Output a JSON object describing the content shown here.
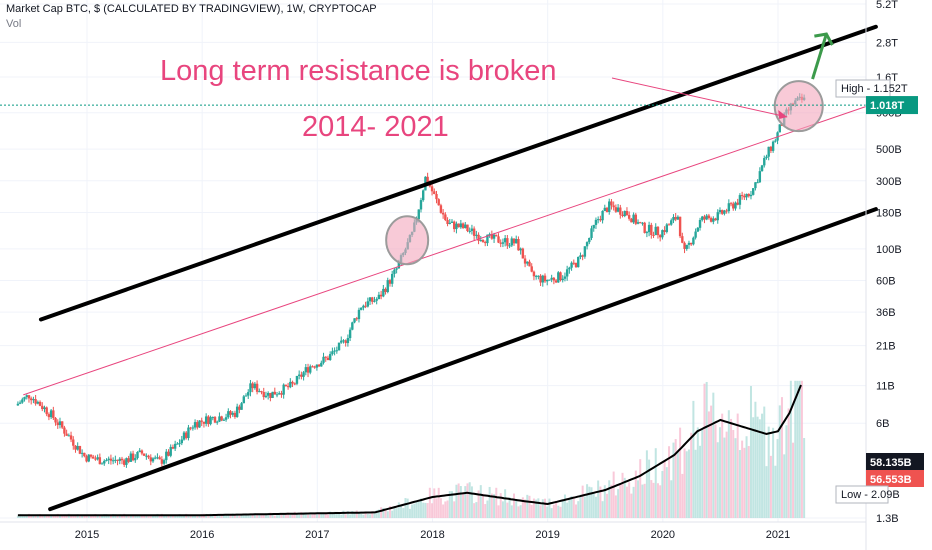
{
  "header": {
    "title": "Market Cap BTC, $ (CALCULATED BY TRADINGVIEW), 1W, CRYPTOCAP",
    "subtitle": "Vol"
  },
  "chart_data": {
    "type": "candlestick",
    "title": "Market Cap BTC, $ (CALCULATED BY TRADINGVIEW), 1W, CRYPTOCAP",
    "y_scale": "log",
    "ylim": [
      1200000000.0,
      5500000000000.0
    ],
    "xlim": [
      2014.35,
      2021.85
    ],
    "y_ticks": [
      {
        "label": "5.2T",
        "value": 5200000000000.0
      },
      {
        "label": "2.8T",
        "value": 2800000000000.0
      },
      {
        "label": "1.6T",
        "value": 1600000000000.0
      },
      {
        "label": "900B",
        "value": 900000000000.0
      },
      {
        "label": "500B",
        "value": 500000000000.0
      },
      {
        "label": "300B",
        "value": 300000000000.0
      },
      {
        "label": "180B",
        "value": 180000000000.0
      },
      {
        "label": "100B",
        "value": 100000000000.0
      },
      {
        "label": "60B",
        "value": 60000000000.0
      },
      {
        "label": "36B",
        "value": 36000000000.0
      },
      {
        "label": "21B",
        "value": 21000000000.0
      },
      {
        "label": "11B",
        "value": 11000000000.0
      },
      {
        "label": "6B",
        "value": 6000000000.0
      },
      {
        "label": "1.3B",
        "value": 1300000000.0
      }
    ],
    "x_ticks": [
      {
        "label": "2015",
        "value": 2015
      },
      {
        "label": "2016",
        "value": 2016
      },
      {
        "label": "2017",
        "value": 2017
      },
      {
        "label": "2018",
        "value": 2018
      },
      {
        "label": "2019",
        "value": 2019
      },
      {
        "label": "2020",
        "value": 2020
      },
      {
        "label": "2021",
        "value": 2021
      }
    ],
    "price_path": [
      [
        2014.4,
        8000000000.0
      ],
      [
        2014.52,
        9500000000.0
      ],
      [
        2014.7,
        7000000000.0
      ],
      [
        2014.85,
        5000000000.0
      ],
      [
        2015.0,
        3500000000.0
      ],
      [
        2015.15,
        3300000000.0
      ],
      [
        2015.35,
        3300000000.0
      ],
      [
        2015.5,
        3700000000.0
      ],
      [
        2015.65,
        3200000000.0
      ],
      [
        2015.8,
        4200000000.0
      ],
      [
        2015.95,
        6000000000.0
      ],
      [
        2016.1,
        6500000000.0
      ],
      [
        2016.3,
        7000000000.0
      ],
      [
        2016.45,
        11000000000.0
      ],
      [
        2016.6,
        9500000000.0
      ],
      [
        2016.8,
        11000000000.0
      ],
      [
        2016.95,
        15000000000.0
      ],
      [
        2017.1,
        17000000000.0
      ],
      [
        2017.25,
        22000000000.0
      ],
      [
        2017.4,
        40000000000.0
      ],
      [
        2017.55,
        45000000000.0
      ],
      [
        2017.7,
        70000000000.0
      ],
      [
        2017.85,
        130000000000.0
      ],
      [
        2017.96,
        320000000000.0
      ],
      [
        2018.05,
        220000000000.0
      ],
      [
        2018.15,
        150000000000.0
      ],
      [
        2018.3,
        140000000000.0
      ],
      [
        2018.45,
        120000000000.0
      ],
      [
        2018.6,
        115000000000.0
      ],
      [
        2018.75,
        110000000000.0
      ],
      [
        2018.88,
        65000000000.0
      ],
      [
        2019.0,
        60000000000.0
      ],
      [
        2019.15,
        65000000000.0
      ],
      [
        2019.3,
        85000000000.0
      ],
      [
        2019.45,
        160000000000.0
      ],
      [
        2019.55,
        200000000000.0
      ],
      [
        2019.7,
        180000000000.0
      ],
      [
        2019.85,
        140000000000.0
      ],
      [
        2020.0,
        130000000000.0
      ],
      [
        2020.15,
        170000000000.0
      ],
      [
        2020.2,
        90000000000.0
      ],
      [
        2020.35,
        160000000000.0
      ],
      [
        2020.5,
        170000000000.0
      ],
      [
        2020.65,
        210000000000.0
      ],
      [
        2020.8,
        260000000000.0
      ],
      [
        2020.92,
        450000000000.0
      ],
      [
        2021.0,
        600000000000.0
      ],
      [
        2021.08,
        850000000000.0
      ],
      [
        2021.15,
        1050000000000.0
      ],
      [
        2021.22,
        1100000000000.0
      ]
    ],
    "volume_scale": {
      "max": 60000000000.0
    },
    "volume_ma": [
      [
        2014.4,
        0.02
      ],
      [
        2016.0,
        0.02
      ],
      [
        2017.5,
        0.04
      ],
      [
        2018.0,
        0.15
      ],
      [
        2018.3,
        0.18
      ],
      [
        2018.8,
        0.12
      ],
      [
        2019.0,
        0.1
      ],
      [
        2019.5,
        0.2
      ],
      [
        2019.8,
        0.3
      ],
      [
        2020.1,
        0.45
      ],
      [
        2020.3,
        0.62
      ],
      [
        2020.5,
        0.7
      ],
      [
        2020.7,
        0.65
      ],
      [
        2020.9,
        0.6
      ],
      [
        2021.0,
        0.62
      ],
      [
        2021.1,
        0.75
      ],
      [
        2021.2,
        0.95
      ]
    ],
    "last_value": 1018000000000.0,
    "price_line_label": "1.018T",
    "high_label": "High - 1.152T",
    "low_label": "Low - 2.09B",
    "volume_labels": [
      "58.135B",
      "56.553B"
    ],
    "trend_channel": {
      "upper": [
        [
          2014.6,
          32000000000.0
        ],
        [
          2021.85,
          3600000000000.0
        ]
      ],
      "lower": [
        [
          2014.68,
          1500000000.0
        ],
        [
          2021.85,
          190000000000.0
        ]
      ],
      "resistance": [
        [
          2014.45,
          9500000000.0
        ],
        [
          2021.85,
          1050000000000.0
        ]
      ]
    },
    "highlight_circles": [
      {
        "x": 2017.78,
        "y": 115000000000.0
      },
      {
        "x": 2021.18,
        "y": 1000000000000.0
      }
    ],
    "annotations": [
      "Long term resistance is broken",
      "2014- 2021"
    ],
    "colors": {
      "up": "#26a69a",
      "down": "#ef5350",
      "channel": "#000000",
      "resistance": "#e8457e",
      "annotation": "#e8457e",
      "price_label": "#089981",
      "low_label": "#ef5350",
      "arrow": "#3c9a4b",
      "highlight_fill": "#f4a6bd",
      "highlight_stroke": "#9b9b9b"
    }
  }
}
